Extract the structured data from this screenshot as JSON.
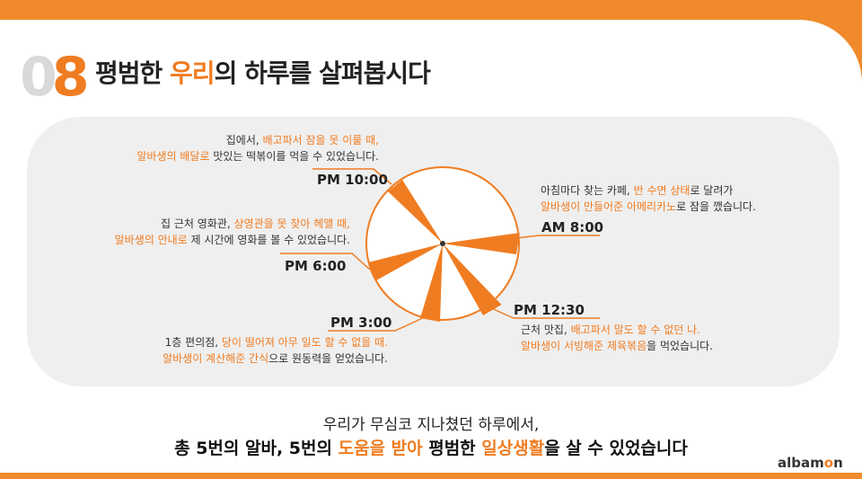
{
  "header": {
    "number_first": "0",
    "number_second": "8",
    "title_pre": "평범한 ",
    "title_highlight": "우리",
    "title_post": "의 하루를 살펴봅시다"
  },
  "events": [
    {
      "time": "AM 8:00",
      "line1_a": "아침마다 찾는 카페, ",
      "line1_b": "반 수면 상태",
      "line1_c": "로 달려가",
      "line2_a": "알바생이 만들어준 아메리카노",
      "line2_b": "로 잠을 깼습니다."
    },
    {
      "time": "PM 12:30",
      "line1_a": "근처 맛집, ",
      "line1_b": "배고파서 말도 할 수 없던 나.",
      "line1_c": "",
      "line2_a": "알바생이 서빙해준 제육볶음",
      "line2_b": "을 먹었습니다."
    },
    {
      "time": "PM 3:00",
      "line1_a": "1층 편의점, ",
      "line1_b": "당이 떨어져 아무 일도 할 수 없을 때.",
      "line1_c": "",
      "line2_a": "알바생이 계산해준 간식",
      "line2_b": "으로 원동력을 얻었습니다."
    },
    {
      "time": "PM 6:00",
      "line1_a": "집 근처 영화관, ",
      "line1_b": "상영관을 못 찾아 헤맬 때,",
      "line1_c": "",
      "line2_a": "알바생의 안내로",
      "line2_b": " 제 시간에 영화를 볼 수 있었습니다."
    },
    {
      "time": "PM 10:00",
      "line1_a": "집에서, ",
      "line1_b": "배고파서 잠을 못 이룰 때,",
      "line1_c": "",
      "line2_a": "알바생의 배달로",
      "line2_b": " 맛있는 떡볶이를 먹을 수 있었습니다."
    }
  ],
  "footer": {
    "line1": "우리가 무심코 지나쳤던 하루에서,",
    "line2_pre": "총 5번의 알바, 5번의 ",
    "line2_hl1": "도움을 받아",
    "line2_mid": " 평범한 ",
    "line2_hl2": "일상생활",
    "line2_post": "을 살 수 있었습니다"
  },
  "logo": {
    "pre": "albam",
    "accent": "o",
    "post": "n"
  },
  "colors": {
    "accent": "#f07c21",
    "panel": "#efefef"
  }
}
